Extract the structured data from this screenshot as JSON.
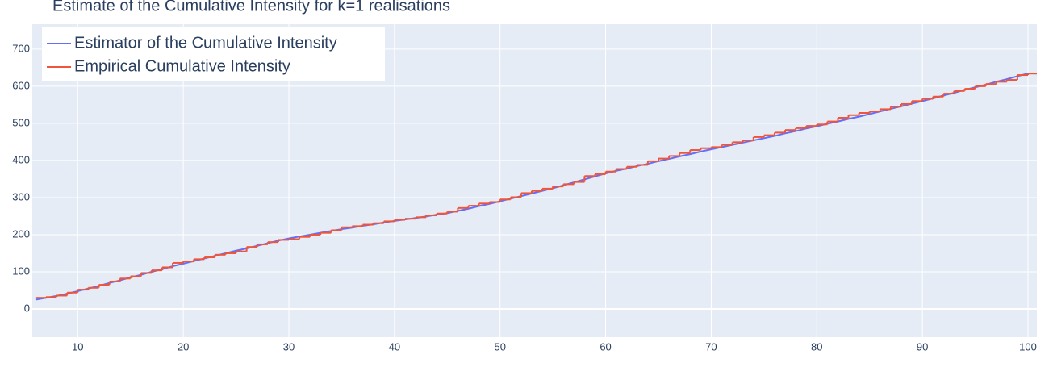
{
  "chart_data": {
    "type": "line",
    "title": "Estimate of the Cumulative Intensity for k=1 realisations",
    "x": [
      6,
      7,
      8,
      9,
      10,
      11,
      12,
      13,
      14,
      15,
      16,
      17,
      18,
      19,
      20,
      21,
      22,
      23,
      24,
      25,
      26,
      27,
      28,
      29,
      30,
      31,
      32,
      33,
      34,
      35,
      36,
      37,
      38,
      39,
      40,
      41,
      42,
      43,
      44,
      45,
      46,
      47,
      48,
      49,
      50,
      51,
      52,
      53,
      54,
      55,
      56,
      57,
      58,
      59,
      60,
      61,
      62,
      63,
      64,
      65,
      66,
      67,
      68,
      69,
      70,
      71,
      72,
      73,
      74,
      75,
      76,
      77,
      78,
      79,
      80,
      81,
      82,
      83,
      84,
      85,
      86,
      87,
      88,
      89,
      90,
      91,
      92,
      93,
      94,
      95,
      96,
      97,
      98,
      99,
      100
    ],
    "series": [
      {
        "name": "Estimator of the Cumulative Intensity",
        "color": "#636efa",
        "shape": "linear",
        "values": [
          25,
          30,
          35,
          41,
          48,
          55,
          62,
          70,
          77,
          85,
          92,
          100,
          107,
          115,
          122,
          129,
          136,
          143,
          150,
          157,
          163,
          170,
          177,
          184,
          190,
          195,
          200,
          205,
          210,
          215,
          219,
          224,
          228,
          233,
          237,
          241,
          245,
          249,
          254,
          258,
          264,
          270,
          277,
          283,
          290,
          297,
          304,
          311,
          318,
          325,
          333,
          341,
          349,
          357,
          365,
          372,
          378,
          385,
          391,
          398,
          404,
          411,
          417,
          424,
          430,
          436,
          442,
          448,
          454,
          460,
          466,
          473,
          479,
          486,
          492,
          499,
          505,
          512,
          518,
          525,
          532,
          539,
          546,
          553,
          560,
          567,
          575,
          582,
          590,
          597,
          604,
          612,
          619,
          627,
          634
        ]
      },
      {
        "name": "Empirical Cumulative Intensity",
        "color": "#ef553b",
        "shape": "hv",
        "values": [
          30,
          32,
          36,
          44,
          52,
          57,
          65,
          74,
          82,
          88,
          97,
          104,
          112,
          124,
          128,
          134,
          139,
          146,
          150,
          155,
          167,
          174,
          180,
          186,
          188,
          194,
          200,
          205,
          212,
          220,
          223,
          227,
          231,
          236,
          240,
          243,
          247,
          252,
          257,
          262,
          272,
          278,
          284,
          288,
          295,
          301,
          312,
          318,
          324,
          330,
          336,
          342,
          358,
          363,
          370,
          377,
          383,
          388,
          398,
          405,
          412,
          420,
          428,
          433,
          436,
          442,
          449,
          454,
          463,
          468,
          475,
          482,
          487,
          493,
          497,
          505,
          515,
          522,
          528,
          532,
          538,
          545,
          552,
          560,
          566,
          572,
          580,
          587,
          593,
          600,
          606,
          612,
          617,
          630,
          634
        ]
      }
    ],
    "xlim": [
      5.7,
      100.84
    ],
    "ylim": [
      -76,
      767
    ],
    "xticks": [
      10,
      20,
      30,
      40,
      50,
      60,
      70,
      80,
      90,
      100
    ],
    "yticks": [
      0,
      100,
      200,
      300,
      400,
      500,
      600,
      700
    ],
    "grid": true,
    "legend": "top-left"
  }
}
